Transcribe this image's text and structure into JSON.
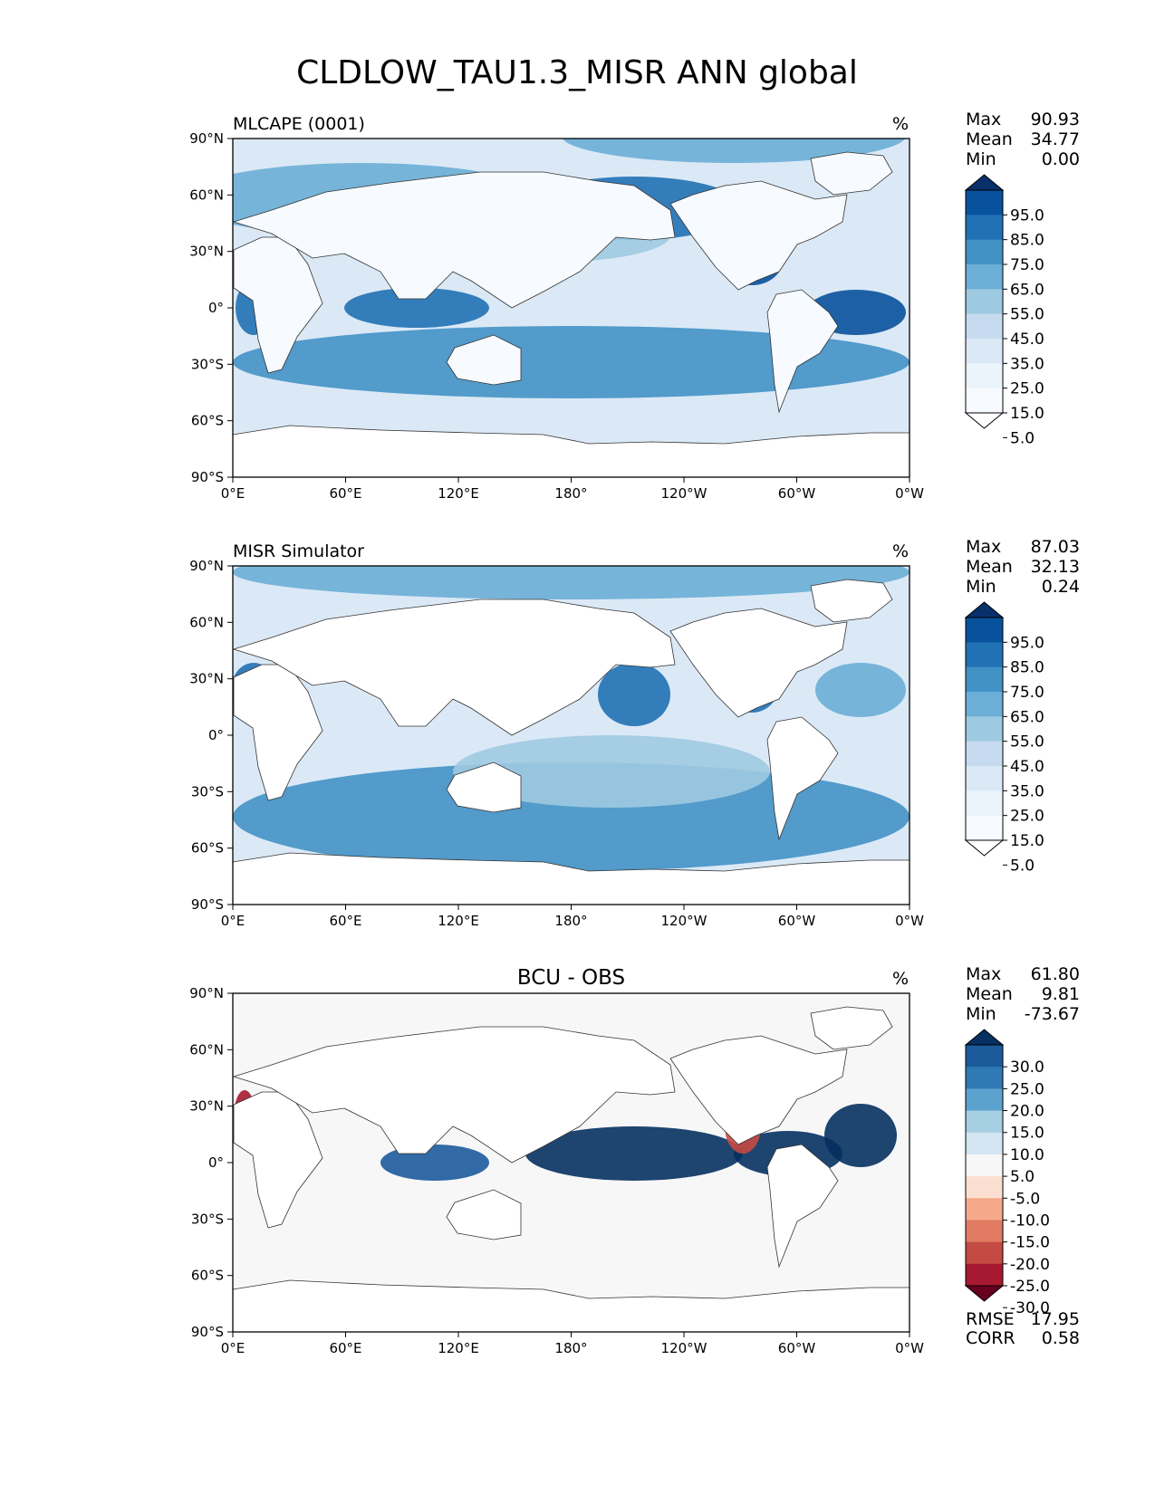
{
  "title": "CLDLOW_TAU1.3_MISR ANN global",
  "lon_ticks": [
    "0°E",
    "60°E",
    "120°E",
    "180°",
    "120°W",
    "60°W",
    "0°W"
  ],
  "lat_ticks": [
    "90°N",
    "60°N",
    "30°N",
    "0°",
    "30°S",
    "60°S",
    "90°S"
  ],
  "chart_data": [
    {
      "type": "heatmap",
      "title": "MLCAPE (0001)",
      "units": "%",
      "stats": [
        {
          "label": "Max",
          "value": "90.93"
        },
        {
          "label": "Mean",
          "value": "34.77"
        },
        {
          "label": "Min",
          "value": "0.00"
        }
      ],
      "colorbar": {
        "levels": [
          "95.0",
          "85.0",
          "75.0",
          "65.0",
          "55.0",
          "45.0",
          "35.0",
          "25.0",
          "15.0",
          "5.0"
        ],
        "colors": [
          "#08306b",
          "#08519c",
          "#2171b5",
          "#4292c6",
          "#6baed6",
          "#9ecae1",
          "#c6dbef",
          "#dbe9f6",
          "#ebf3fb",
          "#f7fbff",
          "#ffffff"
        ]
      }
    },
    {
      "type": "heatmap",
      "title": "MISR Simulator",
      "units": "%",
      "stats": [
        {
          "label": "Max",
          "value": "87.03"
        },
        {
          "label": "Mean",
          "value": "32.13"
        },
        {
          "label": "Min",
          "value": "0.24"
        }
      ],
      "colorbar": {
        "levels": [
          "95.0",
          "85.0",
          "75.0",
          "65.0",
          "55.0",
          "45.0",
          "35.0",
          "25.0",
          "15.0",
          "5.0"
        ],
        "colors": [
          "#08306b",
          "#08519c",
          "#2171b5",
          "#4292c6",
          "#6baed6",
          "#9ecae1",
          "#c6dbef",
          "#dbe9f6",
          "#ebf3fb",
          "#f7fbff",
          "#ffffff"
        ]
      }
    },
    {
      "type": "heatmap",
      "title": "BCU - OBS",
      "units": "%",
      "stats": [
        {
          "label": "Max",
          "value": "61.80"
        },
        {
          "label": "Mean",
          "value": "9.81"
        },
        {
          "label": "Min",
          "value": "-73.67"
        }
      ],
      "colorbar": {
        "levels": [
          "30.0",
          "25.0",
          "20.0",
          "15.0",
          "10.0",
          "5.0",
          "-5.0",
          "-10.0",
          "-15.0",
          "-20.0",
          "-25.0",
          "-30.0"
        ],
        "colors": [
          "#053061",
          "#1b5a9b",
          "#2f79b5",
          "#5ca2ce",
          "#a6cfe3",
          "#d2e5f0",
          "#f7f7f7",
          "#fbe0d2",
          "#f4a98a",
          "#e17c63",
          "#c44a44",
          "#a71930",
          "#67001f"
        ]
      },
      "extra_stats": [
        {
          "label": "RMSE",
          "value": "17.95"
        },
        {
          "label": "CORR",
          "value": "0.58"
        }
      ]
    }
  ]
}
